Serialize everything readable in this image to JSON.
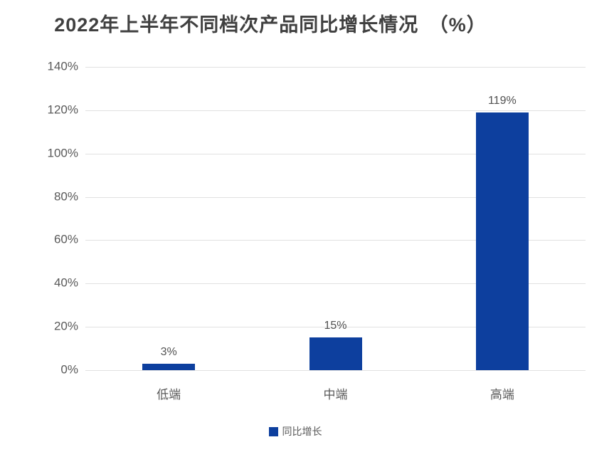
{
  "chart_data": {
    "type": "bar",
    "title": "2022年上半年不同档次产品同比增长情况　（%）",
    "categories": [
      "低端",
      "中端",
      "高端"
    ],
    "series": [
      {
        "name": "同比增长",
        "values": [
          3,
          15,
          119
        ]
      }
    ],
    "value_labels": [
      "3%",
      "15%",
      "119%"
    ],
    "xlabel": "",
    "ylabel": "",
    "ylim": [
      0,
      140
    ],
    "ytick_step": 20,
    "ytick_labels": [
      "0%",
      "20%",
      "40%",
      "60%",
      "80%",
      "100%",
      "120%",
      "140%"
    ],
    "grid": true,
    "legend_position": "bottom"
  },
  "legend": {
    "label": "同比增长"
  },
  "colors": {
    "bar": "#0D3F9E",
    "title_text": "#404040",
    "axis_text": "#595959",
    "gridline": "#E1E1E1",
    "background": "#FFFFFF"
  }
}
